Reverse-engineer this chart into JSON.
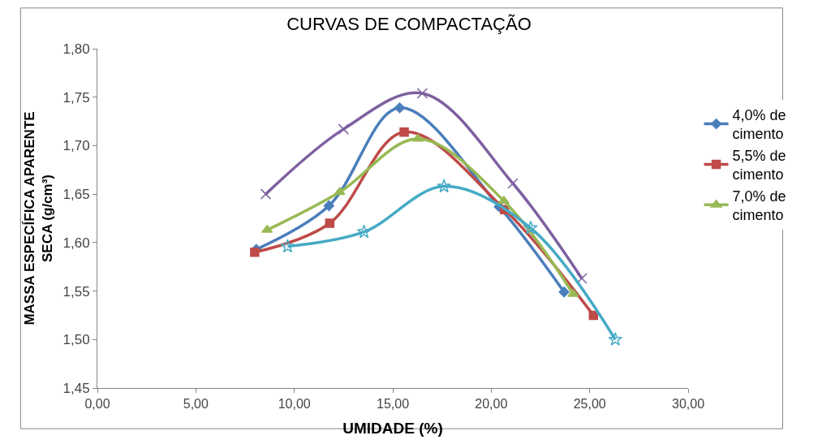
{
  "chart_data": {
    "type": "line",
    "title": "CURVAS DE COMPACTAÇÃO",
    "xlabel": "UMIDADE (%)",
    "ylabel": "MASSA ESPECÍFICA APARENTE\nSECA (g/cm³)",
    "xlim": [
      0,
      30
    ],
    "ylim": [
      1.45,
      1.8
    ],
    "xticks": [
      {
        "value": 0,
        "label": "0,00"
      },
      {
        "value": 5,
        "label": "5,00"
      },
      {
        "value": 10,
        "label": "10,00"
      },
      {
        "value": 15,
        "label": "15,00"
      },
      {
        "value": 20,
        "label": "20,00"
      },
      {
        "value": 25,
        "label": "25,00"
      },
      {
        "value": 30,
        "label": "30,00"
      }
    ],
    "yticks": [
      {
        "value": 1.45,
        "label": "1,45"
      },
      {
        "value": 1.5,
        "label": "1,50"
      },
      {
        "value": 1.55,
        "label": "1,55"
      },
      {
        "value": 1.6,
        "label": "1,60"
      },
      {
        "value": 1.65,
        "label": "1,65"
      },
      {
        "value": 1.7,
        "label": "1,70"
      },
      {
        "value": 1.75,
        "label": "1,75"
      },
      {
        "value": 1.8,
        "label": "1,80"
      }
    ],
    "legend": "right",
    "line_style": "solid",
    "series": [
      {
        "name": "4,0% de\ncimento",
        "color": "#4a7ebb",
        "marker": "diamond",
        "x": [
          8.07,
          11.76,
          15.35,
          20.4,
          23.7
        ],
        "values": [
          1.593,
          1.638,
          1.739,
          1.637,
          1.549
        ]
      },
      {
        "name": "5,5% de\ncimento",
        "color": "#be4b48",
        "marker": "square",
        "x": [
          7.99,
          11.8,
          15.58,
          20.68,
          25.19
        ],
        "values": [
          1.59,
          1.62,
          1.714,
          1.634,
          1.525
        ]
      },
      {
        "name": "7,0% de\ncimento",
        "color": "#98b954",
        "marker": "triangle",
        "x": [
          8.62,
          12.3,
          16.28,
          20.64,
          24.16
        ],
        "values": [
          1.613,
          1.652,
          1.707,
          1.643,
          1.547
        ]
      },
      {
        "color": "#7d60a0",
        "marker": "cross",
        "x": [
          8.55,
          12.5,
          16.5,
          21.1,
          24.6
        ],
        "values": [
          1.65,
          1.717,
          1.754,
          1.661,
          1.563
        ]
      },
      {
        "color": "#46aac5",
        "marker": "star",
        "x": [
          9.66,
          13.54,
          17.6,
          22.0,
          26.3
        ],
        "values": [
          1.596,
          1.611,
          1.658,
          1.615,
          1.5
        ]
      }
    ]
  }
}
